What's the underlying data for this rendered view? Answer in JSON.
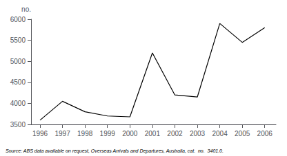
{
  "chart_data": {
    "type": "line",
    "ylabel": "no.",
    "annotation": "Source: ABS data available on request, Overseas Arrivals and Departures, Australia, cat.  no.  3401.0.",
    "x": [
      1996,
      1997,
      1998,
      1999,
      2000,
      2001,
      2002,
      2003,
      2004,
      2005,
      2006
    ],
    "values": [
      3600,
      4050,
      3800,
      3700,
      3680,
      5200,
      4200,
      4150,
      5900,
      5450,
      5800
    ],
    "color": "#000000",
    "line_style": "solid",
    "xlim": [
      1995.6,
      2006.5
    ],
    "xticks": [
      1996,
      1997,
      1998,
      1999,
      2000,
      2001,
      2002,
      2003,
      2004,
      2005,
      2006
    ],
    "ylim": [
      3500,
      6000
    ],
    "yticks": [
      3500,
      4000,
      4500,
      5000,
      5500,
      6000
    ],
    "grid": false
  }
}
